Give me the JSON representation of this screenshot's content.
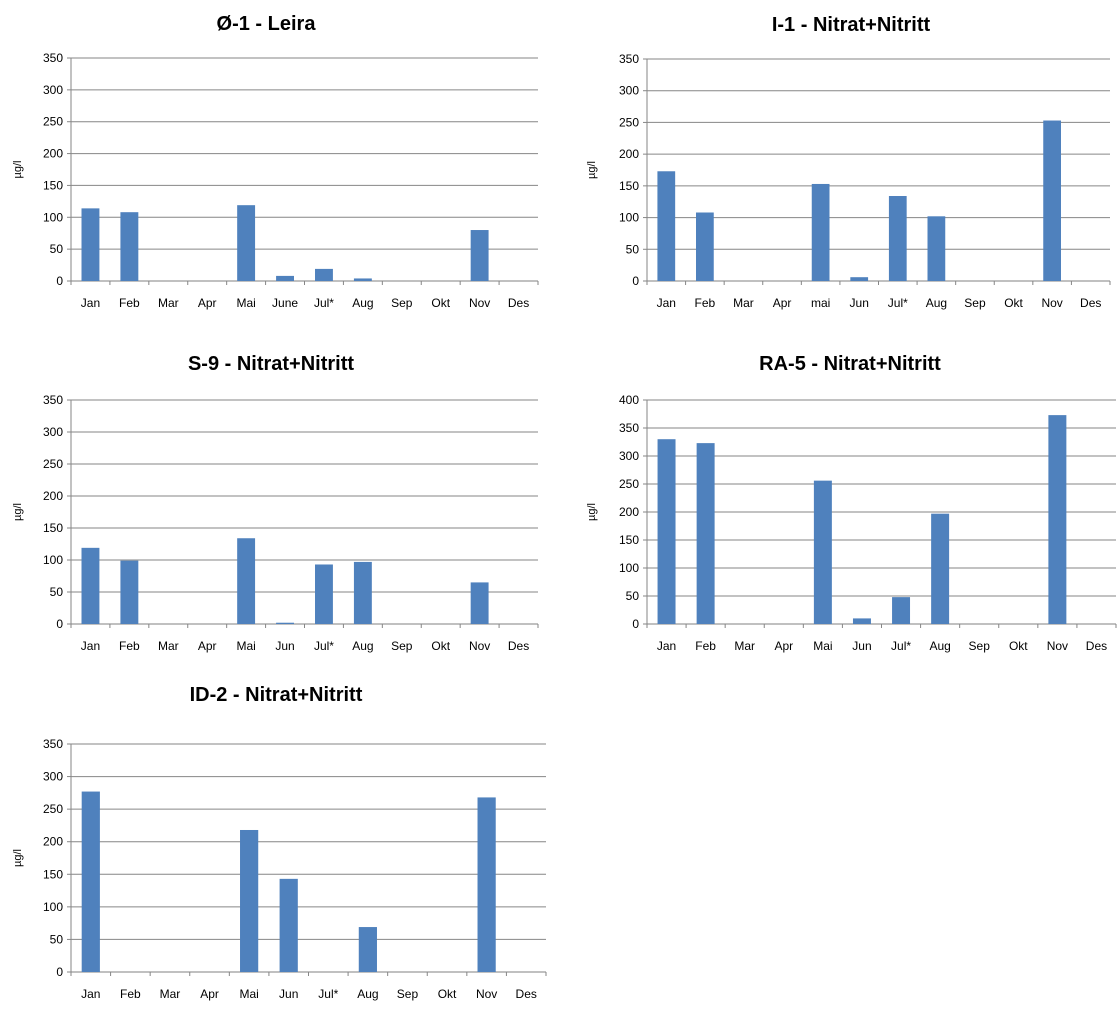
{
  "chart_data": [
    {
      "type": "bar",
      "title": "Ø-1 - Leira",
      "ylabel": "µg/l",
      "xlabel": "",
      "categories": [
        "Jan",
        "Feb",
        "Mar",
        "Apr",
        "Mai",
        "June",
        "Jul*",
        "Aug",
        "Sep",
        "Okt",
        "Nov",
        "Des"
      ],
      "values": [
        114,
        108,
        0,
        0,
        119,
        8,
        19,
        4,
        0,
        0,
        80,
        0
      ],
      "ylim": [
        0,
        350
      ],
      "yticks": [
        0,
        50,
        100,
        150,
        200,
        250,
        300,
        350
      ],
      "grid": true,
      "bar_color": "#4F81BD"
    },
    {
      "type": "bar",
      "title": "I-1 - Nitrat+Nitritt",
      "ylabel": "µg/l",
      "xlabel": "",
      "categories": [
        "Jan",
        "Feb",
        "Mar",
        "Apr",
        "mai",
        "Jun",
        "Jul*",
        "Aug",
        "Sep",
        "Okt",
        "Nov",
        "Des"
      ],
      "values": [
        173,
        108,
        0,
        0,
        153,
        6,
        134,
        102,
        0,
        0,
        253,
        0
      ],
      "ylim": [
        0,
        350
      ],
      "yticks": [
        0,
        50,
        100,
        150,
        200,
        250,
        300,
        350
      ],
      "grid": true,
      "bar_color": "#4F81BD"
    },
    {
      "type": "bar",
      "title": "S-9 - Nitrat+Nitritt",
      "ylabel": "µg/l",
      "xlabel": "",
      "categories": [
        "Jan",
        "Feb",
        "Mar",
        "Apr",
        "Mai",
        "Jun",
        "Jul*",
        "Aug",
        "Sep",
        "Okt",
        "Nov",
        "Des"
      ],
      "values": [
        119,
        99,
        0,
        0,
        134,
        2,
        93,
        97,
        0,
        0,
        65,
        0
      ],
      "ylim": [
        0,
        350
      ],
      "yticks": [
        0,
        50,
        100,
        150,
        200,
        250,
        300,
        350
      ],
      "grid": true,
      "bar_color": "#4F81BD"
    },
    {
      "type": "bar",
      "title": "RA-5 - Nitrat+Nitritt",
      "ylabel": "µg/l",
      "xlabel": "",
      "categories": [
        "Jan",
        "Feb",
        "Mar",
        "Apr",
        "Mai",
        "Jun",
        "Jul*",
        "Aug",
        "Sep",
        "Okt",
        "Nov",
        "Des"
      ],
      "values": [
        330,
        323,
        0,
        0,
        256,
        10,
        48,
        197,
        0,
        0,
        373,
        0
      ],
      "ylim": [
        0,
        400
      ],
      "yticks": [
        0,
        50,
        100,
        150,
        200,
        250,
        300,
        350,
        400
      ],
      "grid": true,
      "bar_color": "#4F81BD"
    },
    {
      "type": "bar",
      "title": "ID-2 - Nitrat+Nitritt",
      "ylabel": "µg/l",
      "xlabel": "",
      "categories": [
        "Jan",
        "Feb",
        "Mar",
        "Apr",
        "Mai",
        "Jun",
        "Jul*",
        "Aug",
        "Sep",
        "Okt",
        "Nov",
        "Des"
      ],
      "values": [
        277,
        0,
        0,
        0,
        218,
        143,
        0,
        69,
        0,
        0,
        268,
        0
      ],
      "ylim": [
        0,
        350
      ],
      "yticks": [
        0,
        50,
        100,
        150,
        200,
        250,
        300,
        350
      ],
      "grid": true,
      "bar_color": "#4F81BD"
    }
  ]
}
